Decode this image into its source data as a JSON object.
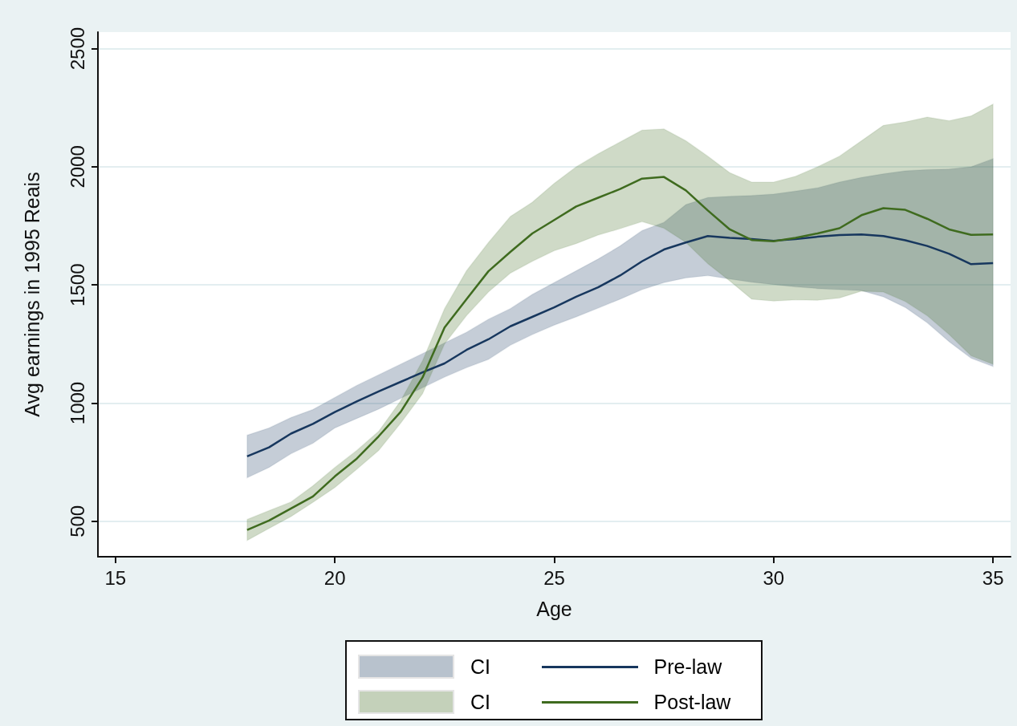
{
  "chart_data": {
    "type": "line",
    "xlabel": "Age",
    "ylabel": "Avg earnings in 1995 Reais",
    "xlim": [
      14.6,
      35.4
    ],
    "xticks": [
      15,
      20,
      25,
      30,
      35
    ],
    "ylim": [
      350,
      2570
    ],
    "yticks": [
      500,
      1000,
      1500,
      2000,
      2500
    ],
    "grid": "y",
    "legend": "bottom",
    "marker": "none",
    "line_style": "solid",
    "annotations": [
      "CI",
      "CI"
    ],
    "x": [
      18,
      18.5,
      19,
      19.5,
      20,
      20.5,
      21,
      21.5,
      22,
      22.5,
      23,
      23.5,
      24,
      24.5,
      25,
      25.5,
      26,
      26.5,
      27,
      27.5,
      28,
      28.5,
      29,
      29.5,
      30,
      30.5,
      31,
      31.5,
      32,
      32.5,
      33,
      33.5,
      34,
      34.5,
      35
    ],
    "series": [
      {
        "name": "Pre-law",
        "color": "#17375e",
        "values": [
          775,
          813,
          871,
          912,
          962,
          1007,
          1050,
          1090,
          1130,
          1168,
          1225,
          1270,
          1325,
          1365,
          1405,
          1450,
          1490,
          1540,
          1600,
          1650,
          1680,
          1707,
          1699,
          1694,
          1687,
          1694,
          1704,
          1711,
          1714,
          1707,
          1689,
          1665,
          1632,
          1588,
          1592
        ],
        "lower": [
          684,
          728,
          786,
          830,
          895,
          935,
          975,
          1020,
          1065,
          1110,
          1150,
          1185,
          1245,
          1290,
          1330,
          1365,
          1402,
          1440,
          1480,
          1510,
          1530,
          1540,
          1525,
          1512,
          1502,
          1492,
          1485,
          1480,
          1476,
          1450,
          1405,
          1340,
          1260,
          1190,
          1155
        ],
        "upper": [
          864,
          895,
          939,
          973,
          1024,
          1075,
          1120,
          1165,
          1210,
          1255,
          1300,
          1355,
          1400,
          1460,
          1510,
          1560,
          1610,
          1665,
          1730,
          1765,
          1840,
          1870,
          1875,
          1878,
          1884,
          1897,
          1911,
          1935,
          1955,
          1970,
          1983,
          1988,
          1990,
          2000,
          2034
        ]
      },
      {
        "name": "Post-law",
        "color": "#3f6b1f",
        "values": [
          463,
          503,
          554,
          605,
          690,
          765,
          860,
          963,
          1109,
          1320,
          1440,
          1558,
          1640,
          1718,
          1775,
          1832,
          1869,
          1906,
          1950,
          1957,
          1900,
          1815,
          1735,
          1690,
          1685,
          1699,
          1718,
          1740,
          1795,
          1825,
          1818,
          1780,
          1735,
          1712,
          1714
        ],
        "lower": [
          419,
          470,
          520,
          580,
          643,
          720,
          800,
          915,
          1040,
          1250,
          1370,
          1470,
          1550,
          1600,
          1645,
          1675,
          1711,
          1738,
          1768,
          1740,
          1680,
          1590,
          1517,
          1440,
          1432,
          1437,
          1435,
          1445,
          1474,
          1470,
          1430,
          1370,
          1290,
          1200,
          1165
        ],
        "upper": [
          508,
          545,
          582,
          650,
          728,
          800,
          881,
          1010,
          1180,
          1400,
          1560,
          1680,
          1790,
          1850,
          1930,
          2000,
          2055,
          2105,
          2155,
          2160,
          2110,
          2045,
          1975,
          1935,
          1935,
          1960,
          2000,
          2045,
          2110,
          2175,
          2190,
          2210,
          2195,
          2215,
          2265
        ]
      }
    ]
  }
}
